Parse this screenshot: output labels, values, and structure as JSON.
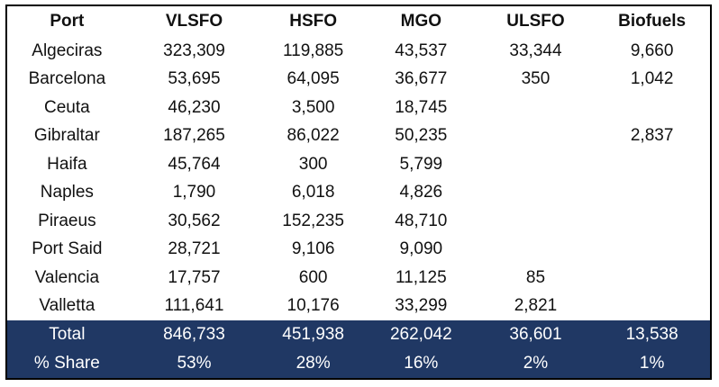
{
  "headers": [
    "Port",
    "VLSFO",
    "HSFO",
    "MGO",
    "ULSFO",
    "Biofuels"
  ],
  "rows": [
    [
      "Algeciras",
      "323,309",
      "119,885",
      "43,537",
      "33,344",
      "9,660"
    ],
    [
      "Barcelona",
      "53,695",
      "64,095",
      "36,677",
      "350",
      "1,042"
    ],
    [
      "Ceuta",
      "46,230",
      "3,500",
      "18,745",
      "",
      ""
    ],
    [
      "Gibraltar",
      "187,265",
      "86,022",
      "50,235",
      "",
      "2,837"
    ],
    [
      "Haifa",
      "45,764",
      "300",
      "5,799",
      "",
      ""
    ],
    [
      "Naples",
      "1,790",
      "6,018",
      "4,826",
      "",
      ""
    ],
    [
      "Piraeus",
      "30,562",
      "152,235",
      "48,710",
      "",
      ""
    ],
    [
      "Port Said",
      "28,721",
      "9,106",
      "9,090",
      "",
      ""
    ],
    [
      "Valencia",
      "17,757",
      "600",
      "11,125",
      "85",
      ""
    ],
    [
      "Valletta",
      "111,641",
      "10,176",
      "33,299",
      "2,821",
      ""
    ]
  ],
  "footer": [
    [
      "Total",
      "846,733",
      "451,938",
      "262,042",
      "36,601",
      "13,538"
    ],
    [
      "% Share",
      "53%",
      "28%",
      "16%",
      "2%",
      "1%"
    ]
  ],
  "colors": {
    "footer_bg": "#203864"
  }
}
